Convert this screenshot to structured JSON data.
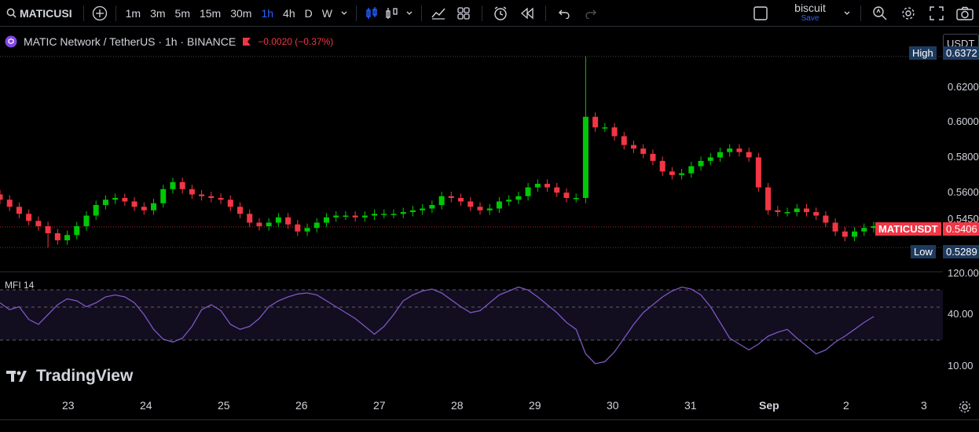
{
  "toolbar": {
    "symbol": "MATICUSI",
    "intervals": [
      "1m",
      "3m",
      "5m",
      "15m",
      "30m",
      "1h",
      "4h",
      "D",
      "W"
    ],
    "active_interval": "1h",
    "layout_name": "biscuit",
    "save_label": "Save",
    "icons": [
      "search-icon",
      "add-icon",
      "candles-icon",
      "bar-style-icon",
      "chevron-down-icon",
      "indicators-icon",
      "templates-icon",
      "alert-icon",
      "replay-icon",
      "undo-icon",
      "redo-icon",
      "checkbox-icon",
      "quick-search-icon",
      "settings-icon",
      "fullscreen-icon",
      "camera-icon"
    ]
  },
  "legend": {
    "title": "MATIC Network / TetherUS · 1h · BINANCE",
    "change": "−0.0020 (−0.37%)"
  },
  "currency": "USDT",
  "price_scale": [
    "0.6200",
    "0.6000",
    "0.5800",
    "0.5600",
    "0.5450"
  ],
  "high_label": "High",
  "high_value": "0.6372",
  "low_label": "Low",
  "low_value": "0.5289",
  "last_symbol": "MATICUSDT",
  "last_value": "0.5406",
  "mfi": {
    "label": "MFI 14",
    "scale": [
      "120.00",
      "40.00",
      "10.00"
    ]
  },
  "x_labels": [
    "23",
    "24",
    "25",
    "26",
    "27",
    "28",
    "29",
    "30",
    "31",
    "Sep",
    "2",
    "3"
  ],
  "logo_text": "TradingView",
  "colors": {
    "up": "#26a69a",
    "down": "#ef5350",
    "green": "#00c805",
    "red": "#f23645",
    "mfi": "#7e57c2"
  },
  "chart_data": {
    "type": "candlestick",
    "title": "MATIC Network / TetherUS · 1h · BINANCE",
    "x_ticks": [
      "23",
      "24",
      "25",
      "26",
      "27",
      "28",
      "29",
      "30",
      "31",
      "Sep",
      "2",
      "3"
    ],
    "y_ticks": [
      0.545,
      0.56,
      0.58,
      0.6,
      0.62
    ],
    "close_series": [
      0.556,
      0.552,
      0.548,
      0.544,
      0.541,
      0.537,
      0.533,
      0.536,
      0.541,
      0.547,
      0.553,
      0.556,
      0.557,
      0.555,
      0.552,
      0.55,
      0.554,
      0.562,
      0.566,
      0.562,
      0.559,
      0.558,
      0.557,
      0.556,
      0.552,
      0.548,
      0.543,
      0.541,
      0.543,
      0.546,
      0.542,
      0.538,
      0.54,
      0.543,
      0.546,
      0.547,
      0.547,
      0.546,
      0.547,
      0.548,
      0.548,
      0.548,
      0.549,
      0.55,
      0.551,
      0.553,
      0.558,
      0.557,
      0.555,
      0.552,
      0.55,
      0.551,
      0.555,
      0.556,
      0.558,
      0.563,
      0.565,
      0.563,
      0.56,
      0.557,
      0.557,
      0.603,
      0.597,
      0.597,
      0.592,
      0.587,
      0.585,
      0.582,
      0.578,
      0.572,
      0.57,
      0.571,
      0.575,
      0.578,
      0.58,
      0.583,
      0.585,
      0.583,
      0.58,
      0.563,
      0.55,
      0.549,
      0.549,
      0.551,
      0.549,
      0.547,
      0.543,
      0.538,
      0.535,
      0.538,
      0.54,
      0.541
    ],
    "high": 0.6372,
    "low": 0.5289,
    "last": 0.5406,
    "indicator": {
      "name": "MFI 14",
      "values": [
        82,
        75,
        78,
        65,
        60,
        70,
        80,
        86,
        84,
        78,
        82,
        88,
        90,
        88,
        82,
        70,
        55,
        45,
        42,
        46,
        58,
        75,
        80,
        74,
        60,
        55,
        58,
        66,
        78,
        84,
        88,
        91,
        92,
        90,
        84,
        78,
        72,
        66,
        58,
        50,
        58,
        70,
        84,
        90,
        94,
        96,
        92,
        85,
        78,
        72,
        74,
        82,
        90,
        94,
        98,
        95,
        88,
        80,
        72,
        62,
        55,
        30,
        20,
        22,
        32,
        46,
        60,
        72,
        80,
        88,
        94,
        98,
        96,
        90,
        78,
        62,
        46,
        40,
        34,
        40,
        48,
        52,
        55,
        46,
        38,
        30,
        34,
        42,
        48,
        55,
        62,
        68
      ]
    }
  }
}
